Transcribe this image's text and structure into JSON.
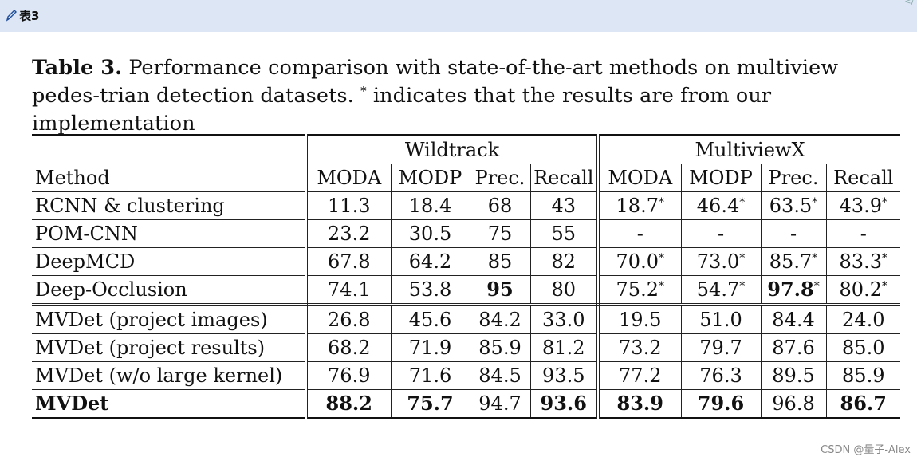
{
  "header": {
    "pencil_icon": "pencil-icon",
    "label": "表3",
    "code_mark": "</"
  },
  "caption": {
    "prefix": "Table 3.",
    "text_part1": " Performance comparison with state-of-the-art methods on multiview pedes-trian detection datasets. ",
    "asterisk": "*",
    "text_part2": " indicates that the results are from our implementation"
  },
  "table": {
    "groups": [
      "Wildtrack",
      "MultiviewX"
    ],
    "columns": [
      "Method",
      "MODA",
      "MODP",
      "Prec.",
      "Recall",
      "MODA",
      "MODP",
      "Prec.",
      "Recall"
    ],
    "rows": [
      {
        "method": "RCNN & clustering",
        "cells": [
          {
            "v": "11.3"
          },
          {
            "v": "18.4"
          },
          {
            "v": "68"
          },
          {
            "v": "43"
          },
          {
            "v": "18.7",
            "star": "*"
          },
          {
            "v": "46.4",
            "star": "*"
          },
          {
            "v": "63.5",
            "star": "*"
          },
          {
            "v": "43.9",
            "star": "*"
          }
        ]
      },
      {
        "method": "POM-CNN",
        "cells": [
          {
            "v": "23.2"
          },
          {
            "v": "30.5"
          },
          {
            "v": "75"
          },
          {
            "v": "55"
          },
          {
            "v": "-"
          },
          {
            "v": "-"
          },
          {
            "v": "-"
          },
          {
            "v": "-"
          }
        ]
      },
      {
        "method": "DeepMCD",
        "cells": [
          {
            "v": "67.8"
          },
          {
            "v": "64.2"
          },
          {
            "v": "85"
          },
          {
            "v": "82"
          },
          {
            "v": "70.0",
            "star": "*"
          },
          {
            "v": "73.0",
            "star": "*"
          },
          {
            "v": "85.7",
            "star": "*"
          },
          {
            "v": "83.3",
            "star": "*"
          }
        ]
      },
      {
        "method": "Deep-Occlusion",
        "cells": [
          {
            "v": "74.1"
          },
          {
            "v": "53.8"
          },
          {
            "v": "95",
            "bold": true
          },
          {
            "v": "80"
          },
          {
            "v": "75.2",
            "star": "*"
          },
          {
            "v": "54.7",
            "star": "*"
          },
          {
            "v": "97.8",
            "star": "*",
            "bold": true
          },
          {
            "v": "80.2",
            "star": "*"
          }
        ]
      },
      {
        "method": "MVDet (project images)",
        "cells": [
          {
            "v": "26.8"
          },
          {
            "v": "45.6"
          },
          {
            "v": "84.2"
          },
          {
            "v": "33.0"
          },
          {
            "v": "19.5"
          },
          {
            "v": "51.0"
          },
          {
            "v": "84.4"
          },
          {
            "v": "24.0"
          }
        ]
      },
      {
        "method": "MVDet (project results)",
        "cells": [
          {
            "v": "68.2"
          },
          {
            "v": "71.9"
          },
          {
            "v": "85.9"
          },
          {
            "v": "81.2"
          },
          {
            "v": "73.2"
          },
          {
            "v": "79.7"
          },
          {
            "v": "87.6"
          },
          {
            "v": "85.0"
          }
        ]
      },
      {
        "method": "MVDet (w/o large kernel)",
        "cells": [
          {
            "v": "76.9"
          },
          {
            "v": "71.6"
          },
          {
            "v": "84.5"
          },
          {
            "v": "93.5"
          },
          {
            "v": "77.2"
          },
          {
            "v": "76.3"
          },
          {
            "v": "89.5"
          },
          {
            "v": "85.9"
          }
        ]
      },
      {
        "method": "MVDet",
        "method_bold": true,
        "cells": [
          {
            "v": "88.2",
            "bold": true
          },
          {
            "v": "75.7",
            "bold": true
          },
          {
            "v": "94.7"
          },
          {
            "v": "93.6",
            "bold": true
          },
          {
            "v": "83.9",
            "bold": true
          },
          {
            "v": "79.6",
            "bold": true
          },
          {
            "v": "96.8"
          },
          {
            "v": "86.7",
            "bold": true
          }
        ]
      }
    ]
  },
  "watermark": "CSDN @量子-Alex"
}
